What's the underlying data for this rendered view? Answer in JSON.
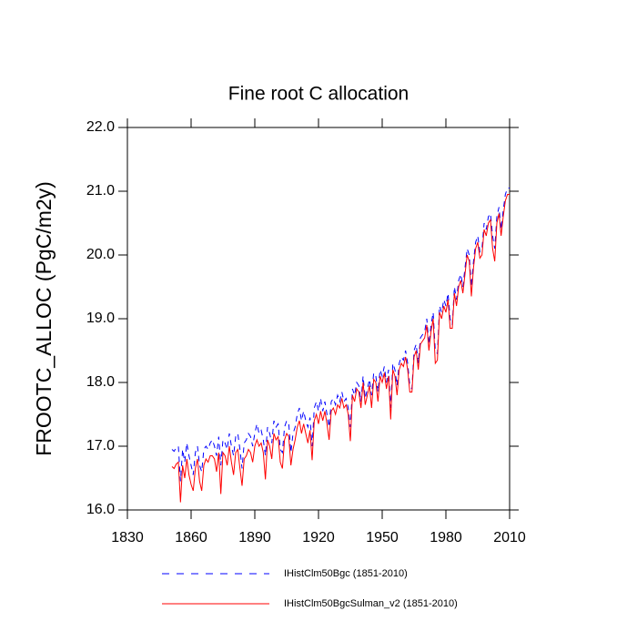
{
  "chart_data": {
    "type": "line",
    "title": "Fine root C allocation",
    "y_label": "FROOTC_ALLOC  (PgC/m2y)",
    "x": [
      1851,
      1852,
      1853,
      1854,
      1855,
      1856,
      1857,
      1858,
      1859,
      1860,
      1861,
      1862,
      1863,
      1864,
      1865,
      1866,
      1867,
      1868,
      1869,
      1870,
      1871,
      1872,
      1873,
      1874,
      1875,
      1876,
      1877,
      1878,
      1879,
      1880,
      1881,
      1882,
      1883,
      1884,
      1885,
      1886,
      1887,
      1888,
      1889,
      1890,
      1891,
      1892,
      1893,
      1894,
      1895,
      1896,
      1897,
      1898,
      1899,
      1900,
      1901,
      1902,
      1903,
      1904,
      1905,
      1906,
      1907,
      1908,
      1909,
      1910,
      1911,
      1912,
      1913,
      1914,
      1915,
      1916,
      1917,
      1918,
      1919,
      1920,
      1921,
      1922,
      1923,
      1924,
      1925,
      1926,
      1927,
      1928,
      1929,
      1930,
      1931,
      1932,
      1933,
      1934,
      1935,
      1936,
      1937,
      1938,
      1939,
      1940,
      1941,
      1942,
      1943,
      1944,
      1945,
      1946,
      1947,
      1948,
      1949,
      1950,
      1951,
      1952,
      1953,
      1954,
      1955,
      1956,
      1957,
      1958,
      1959,
      1960,
      1961,
      1962,
      1963,
      1964,
      1965,
      1966,
      1967,
      1968,
      1969,
      1970,
      1971,
      1972,
      1973,
      1974,
      1975,
      1976,
      1977,
      1978,
      1979,
      1980,
      1981,
      1982,
      1983,
      1984,
      1985,
      1986,
      1987,
      1988,
      1989,
      1990,
      1991,
      1992,
      1993,
      1994,
      1995,
      1996,
      1997,
      1998,
      1999,
      2000,
      2001,
      2002,
      2003,
      2004,
      2005,
      2006,
      2007,
      2008,
      2009,
      2010
    ],
    "series": [
      {
        "name": "IHistClm50Bgc (1851-2010)",
        "color": "#0000ff",
        "line_style": "dashed",
        "values": [
          16.95,
          16.92,
          16.98,
          17.0,
          16.45,
          16.95,
          16.75,
          17.05,
          16.85,
          16.7,
          16.55,
          16.9,
          17.0,
          16.7,
          16.6,
          16.95,
          17.0,
          16.95,
          17.05,
          17.1,
          17.0,
          16.85,
          17.15,
          16.7,
          17.1,
          17.05,
          16.95,
          17.2,
          17.0,
          16.85,
          17.15,
          17.2,
          16.95,
          16.65,
          17.05,
          17.1,
          17.2,
          17.15,
          17.0,
          17.2,
          17.35,
          17.2,
          17.25,
          17.1,
          16.85,
          17.3,
          17.2,
          17.05,
          17.4,
          17.3,
          17.35,
          16.95,
          16.9,
          17.3,
          17.4,
          17.35,
          16.9,
          17.2,
          17.3,
          17.5,
          17.6,
          17.4,
          17.55,
          17.4,
          17.3,
          17.45,
          17.0,
          17.6,
          17.7,
          17.55,
          17.75,
          17.55,
          17.7,
          17.5,
          17.3,
          17.7,
          17.75,
          17.65,
          17.8,
          17.7,
          17.85,
          17.7,
          17.75,
          17.6,
          17.3,
          17.9,
          17.8,
          18.0,
          17.95,
          17.7,
          18.1,
          17.75,
          17.9,
          18.05,
          17.8,
          18.15,
          18.1,
          17.85,
          18.2,
          18.1,
          18.25,
          18.0,
          18.2,
          17.6,
          18.3,
          18.2,
          17.95,
          18.3,
          18.4,
          18.35,
          18.5,
          18.3,
          17.95,
          17.9,
          18.5,
          18.6,
          18.3,
          18.7,
          18.75,
          18.8,
          19.0,
          18.6,
          18.9,
          19.1,
          18.5,
          18.45,
          19.2,
          19.1,
          19.3,
          19.2,
          19.4,
          19.0,
          18.9,
          19.5,
          19.3,
          19.6,
          19.7,
          19.5,
          19.8,
          20.1,
          20.0,
          19.5,
          19.9,
          20.2,
          20.3,
          20.05,
          20.1,
          20.5,
          20.4,
          20.6,
          20.65,
          20.3,
          20.1,
          20.6,
          20.75,
          20.4,
          20.7,
          20.95,
          21.05,
          21.05
        ]
      },
      {
        "name": "IHistClm50BgcSulman_v2 (1851-2010)",
        "color": "#ff0000",
        "line_style": "solid",
        "values": [
          16.68,
          16.65,
          16.72,
          16.75,
          16.12,
          16.7,
          16.5,
          16.8,
          16.55,
          16.4,
          16.3,
          16.65,
          16.8,
          16.45,
          16.3,
          16.7,
          16.8,
          16.75,
          16.85,
          16.85,
          16.8,
          16.6,
          16.9,
          16.25,
          16.9,
          16.85,
          16.7,
          17.0,
          16.75,
          16.55,
          16.9,
          16.95,
          16.65,
          16.38,
          16.8,
          16.85,
          16.95,
          16.9,
          16.75,
          17.0,
          17.1,
          17.0,
          17.05,
          16.9,
          16.48,
          17.1,
          17.0,
          16.8,
          17.2,
          17.1,
          17.15,
          16.75,
          16.65,
          17.1,
          17.2,
          17.15,
          16.7,
          16.95,
          17.1,
          17.3,
          17.4,
          17.2,
          17.35,
          17.2,
          17.05,
          17.25,
          16.78,
          17.4,
          17.5,
          17.35,
          17.55,
          17.4,
          17.55,
          17.35,
          17.1,
          17.55,
          17.6,
          17.5,
          17.65,
          17.6,
          17.75,
          17.6,
          17.65,
          17.5,
          17.08,
          17.8,
          17.7,
          17.9,
          17.85,
          17.6,
          18.0,
          17.65,
          17.8,
          17.95,
          17.6,
          18.05,
          18.0,
          17.7,
          18.1,
          18.0,
          18.15,
          17.9,
          18.1,
          17.42,
          18.2,
          18.1,
          17.8,
          18.2,
          18.3,
          18.25,
          18.4,
          18.2,
          17.85,
          17.85,
          18.4,
          18.5,
          18.2,
          18.6,
          18.65,
          18.7,
          18.9,
          18.5,
          18.8,
          19.0,
          18.3,
          18.35,
          19.1,
          19.0,
          19.2,
          19.1,
          19.3,
          18.85,
          18.85,
          19.4,
          19.2,
          19.5,
          19.6,
          19.4,
          19.7,
          20.0,
          19.9,
          19.35,
          19.8,
          20.1,
          20.2,
          19.95,
          20.0,
          20.4,
          20.3,
          20.5,
          20.55,
          20.1,
          19.9,
          20.5,
          20.65,
          20.3,
          20.6,
          20.85,
          20.95,
          20.95
        ]
      }
    ],
    "xlim": [
      1830,
      2010
    ],
    "xticks": [
      1830,
      1860,
      1890,
      1920,
      1950,
      1980,
      2010
    ],
    "ylim": [
      16,
      22
    ],
    "yticks": [
      {
        "value": 16,
        "label": "16.0"
      },
      {
        "value": 17,
        "label": "17.0"
      },
      {
        "value": 18,
        "label": "18.0"
      },
      {
        "value": 19,
        "label": "19.0"
      },
      {
        "value": 20,
        "label": "20.0"
      },
      {
        "value": 21,
        "label": "21.0"
      },
      {
        "value": 22,
        "label": "22.0"
      }
    ],
    "grid": false,
    "legend": "bottom"
  }
}
